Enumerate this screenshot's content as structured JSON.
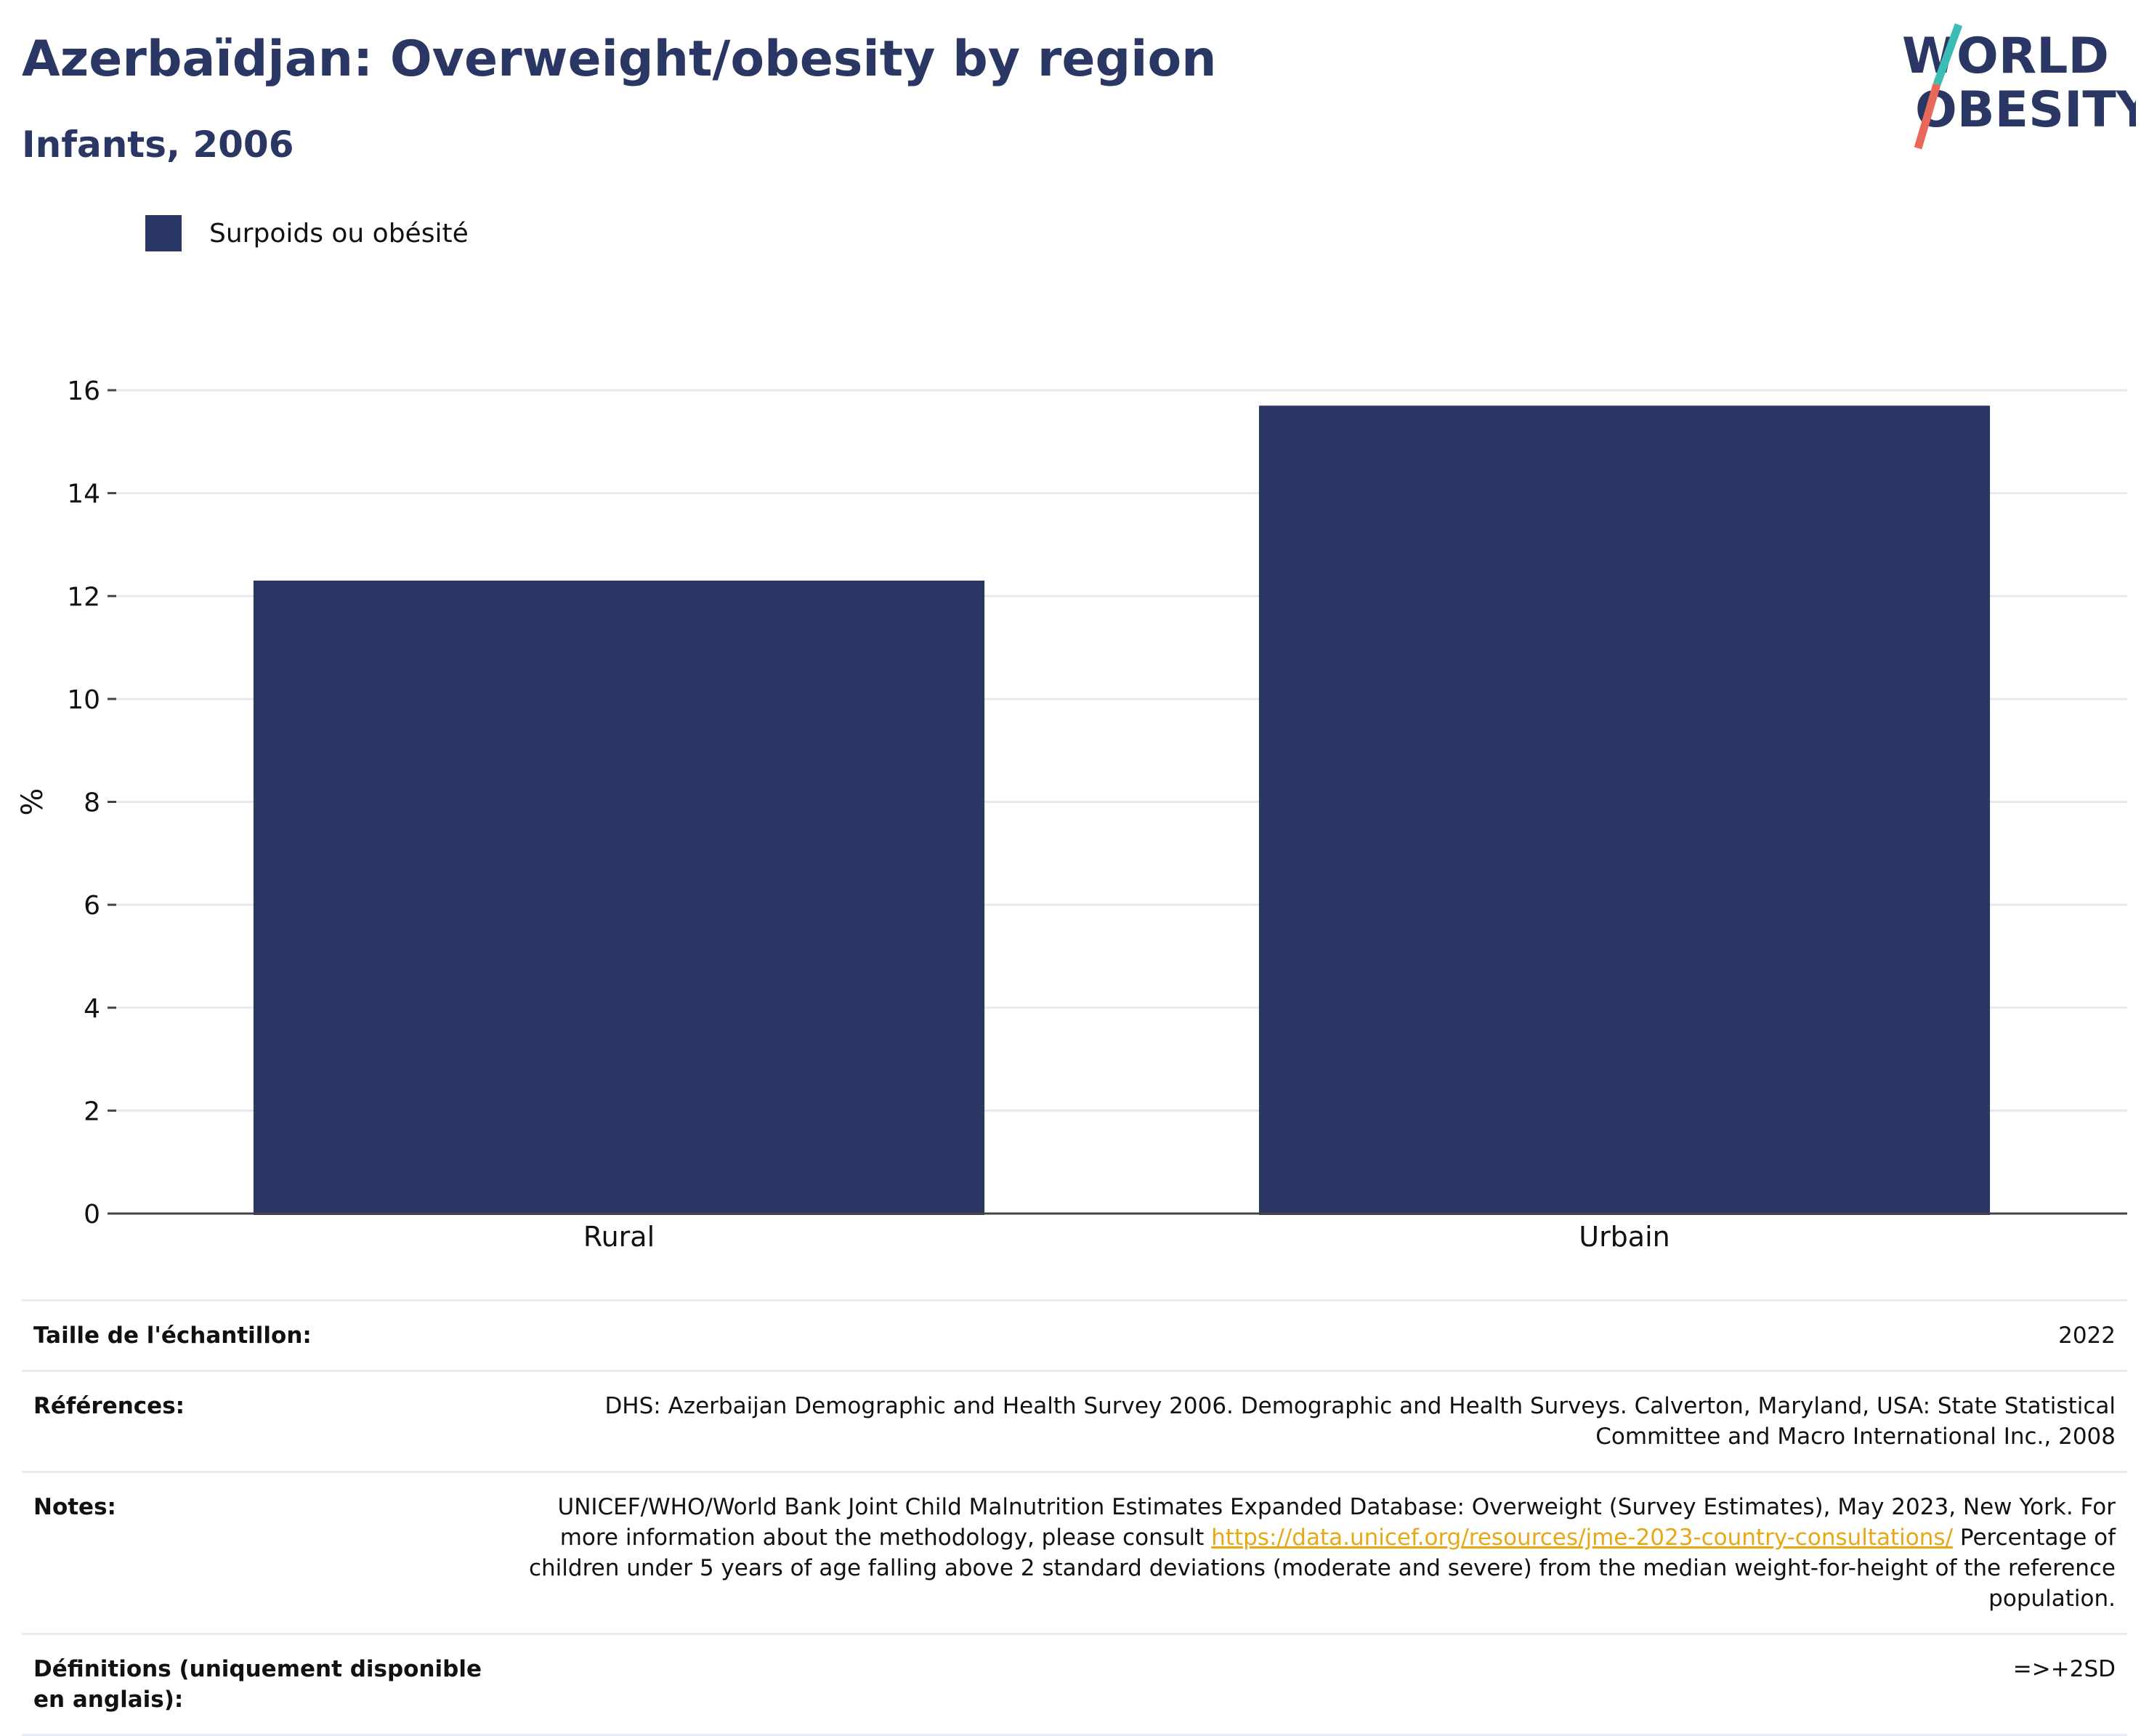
{
  "header": {
    "title": "Azerbaïdjan: Overweight/obesity by region",
    "subtitle": "Infants, 2006"
  },
  "logo": {
    "line1": "WORLD",
    "line2": "OBESITY"
  },
  "colors": {
    "bar": "#2a3664",
    "title": "#2a3664",
    "link": "#e6a817",
    "logo_teal": "#3bbdb5",
    "logo_coral": "#e8685a"
  },
  "chart_data": {
    "type": "bar",
    "categories": [
      "Rural",
      "Urbain"
    ],
    "series": [
      {
        "name": "Surpoids ou obésité",
        "values": [
          12.3,
          15.7
        ]
      }
    ],
    "ylabel": "%",
    "xlabel": "",
    "ylim": [
      0,
      16
    ],
    "yticks": [
      0,
      2,
      4,
      6,
      8,
      10,
      12,
      14,
      16
    ],
    "grid": true,
    "legend_position": "top-left"
  },
  "info": {
    "sample_label": "Taille de l'échantillon:",
    "sample_value": "2022",
    "references_label": "Références:",
    "references_value": "DHS: Azerbaijan Demographic and Health Survey 2006. Demographic and Health Surveys. Calverton, Maryland, USA: State Statistical Committee and Macro International Inc., 2008",
    "notes_label": "Notes:",
    "notes_text_1": "UNICEF/WHO/World Bank Joint Child Malnutrition Estimates Expanded Database: Overweight (Survey Estimates), May 2023, New York. For more information about the methodology, please consult",
    "notes_link": "https://data.unicef.org/resources/jme-2023-country-consultations/",
    "notes_text_2": "Percentage of children under 5 years of age falling above 2 standard deviations (moderate and severe) from the median weight-for-height of the reference population.",
    "definitions_label": "Définitions (uniquement disponible en anglais):",
    "definitions_value": "=>+2SD"
  }
}
